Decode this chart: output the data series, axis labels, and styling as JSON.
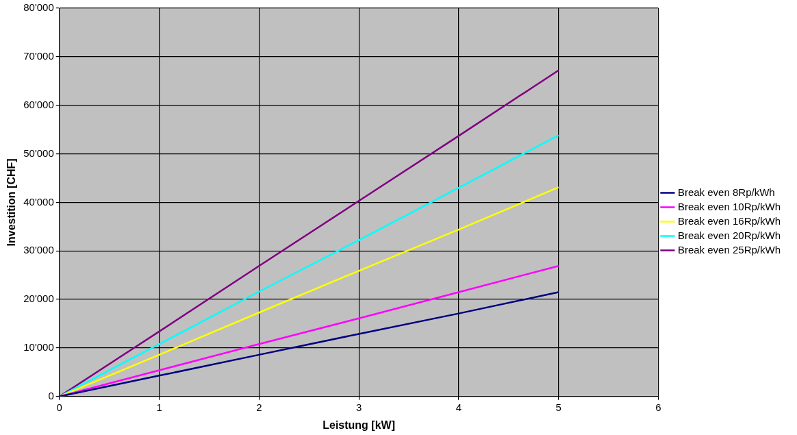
{
  "chart_data": {
    "type": "line",
    "xlabel": "Leistung [kW]",
    "ylabel": "Investition [CHF]",
    "x": [
      0,
      1,
      2,
      3,
      4,
      5
    ],
    "series": [
      {
        "name": "Break even 8Rp/kWh",
        "color": "#000080",
        "values": [
          0,
          4300,
          8600,
          12900,
          17100,
          21500
        ]
      },
      {
        "name": "Break even 10Rp/kWh",
        "color": "#ff00ff",
        "values": [
          0,
          5400,
          10800,
          16100,
          21500,
          26900
        ]
      },
      {
        "name": "Break even 16Rp/kWh",
        "color": "#ffff00",
        "values": [
          0,
          8600,
          17300,
          25900,
          34400,
          43100
        ]
      },
      {
        "name": "Break even 20Rp/kWh",
        "color": "#00ffff",
        "values": [
          0,
          10800,
          21600,
          32200,
          43000,
          53800
        ]
      },
      {
        "name": "Break even 25Rp/kWh",
        "color": "#800080",
        "values": [
          0,
          13400,
          26900,
          40300,
          53700,
          67200
        ]
      }
    ],
    "xlim": [
      0,
      6
    ],
    "xticks": [
      0,
      1,
      2,
      3,
      4,
      5,
      6
    ],
    "ylim": [
      0,
      80000
    ],
    "yticks": [
      {
        "value": 0,
        "label": "0"
      },
      {
        "value": 10000,
        "label": "10'000"
      },
      {
        "value": 20000,
        "label": "20'000"
      },
      {
        "value": 30000,
        "label": "30'000"
      },
      {
        "value": 40000,
        "label": "40'000"
      },
      {
        "value": 50000,
        "label": "50'000"
      },
      {
        "value": 60000,
        "label": "60'000"
      },
      {
        "value": 70000,
        "label": "70'000"
      },
      {
        "value": 80000,
        "label": "80'000"
      }
    ],
    "grid": true,
    "legend": "right",
    "marker": "none",
    "line_style": "solid"
  }
}
